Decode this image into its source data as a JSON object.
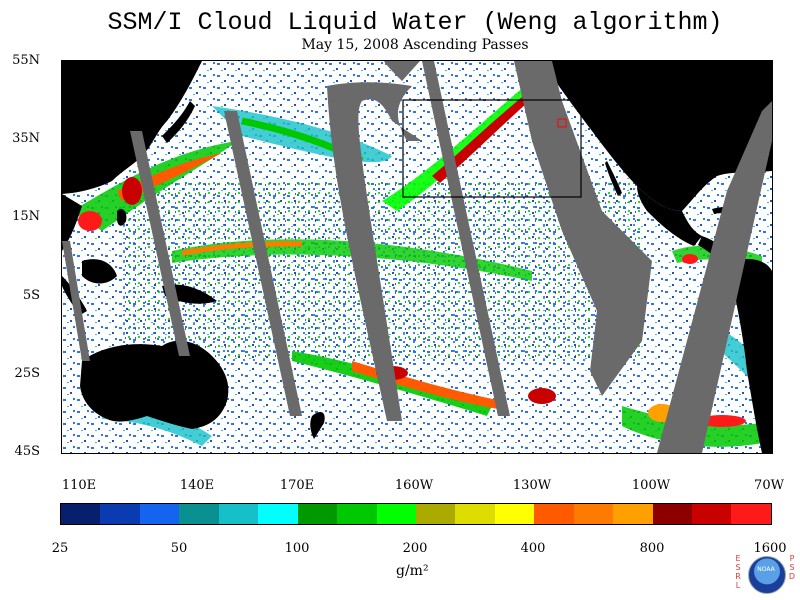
{
  "title": "SSM/I Cloud Liquid Water (Weng algorithm)",
  "subtitle": "May 15, 2008  Ascending Passes",
  "map": {
    "lat_labels": [
      "55N",
      "35N",
      "15N",
      "5S",
      "25S",
      "45S"
    ],
    "lon_labels": [
      "110E",
      "140E",
      "170E",
      "160W",
      "130W",
      "100W",
      "70W"
    ],
    "land_color": "#000000",
    "gap_color": "#6a6a6a",
    "ocean_clear_color": "#ffffff"
  },
  "colorbar": {
    "colors": [
      "#081f6e",
      "#0a3bb0",
      "#1464f0",
      "#0a9090",
      "#16c0c8",
      "#00ffff",
      "#009a00",
      "#00c800",
      "#00ff00",
      "#aaaa00",
      "#dddd00",
      "#ffff00",
      "#ff5a00",
      "#ff7a00",
      "#ffa000",
      "#8c0000",
      "#c80000",
      "#ff1a1a"
    ],
    "tick_labels": [
      "25",
      "50",
      "100",
      "200",
      "400",
      "800",
      "1600"
    ],
    "units": "g/m²"
  },
  "logo": {
    "left_letters": [
      "E",
      "S",
      "R",
      "L"
    ],
    "right_letters": [
      "P",
      "S",
      "D"
    ],
    "emblem_text": "NOAA"
  }
}
